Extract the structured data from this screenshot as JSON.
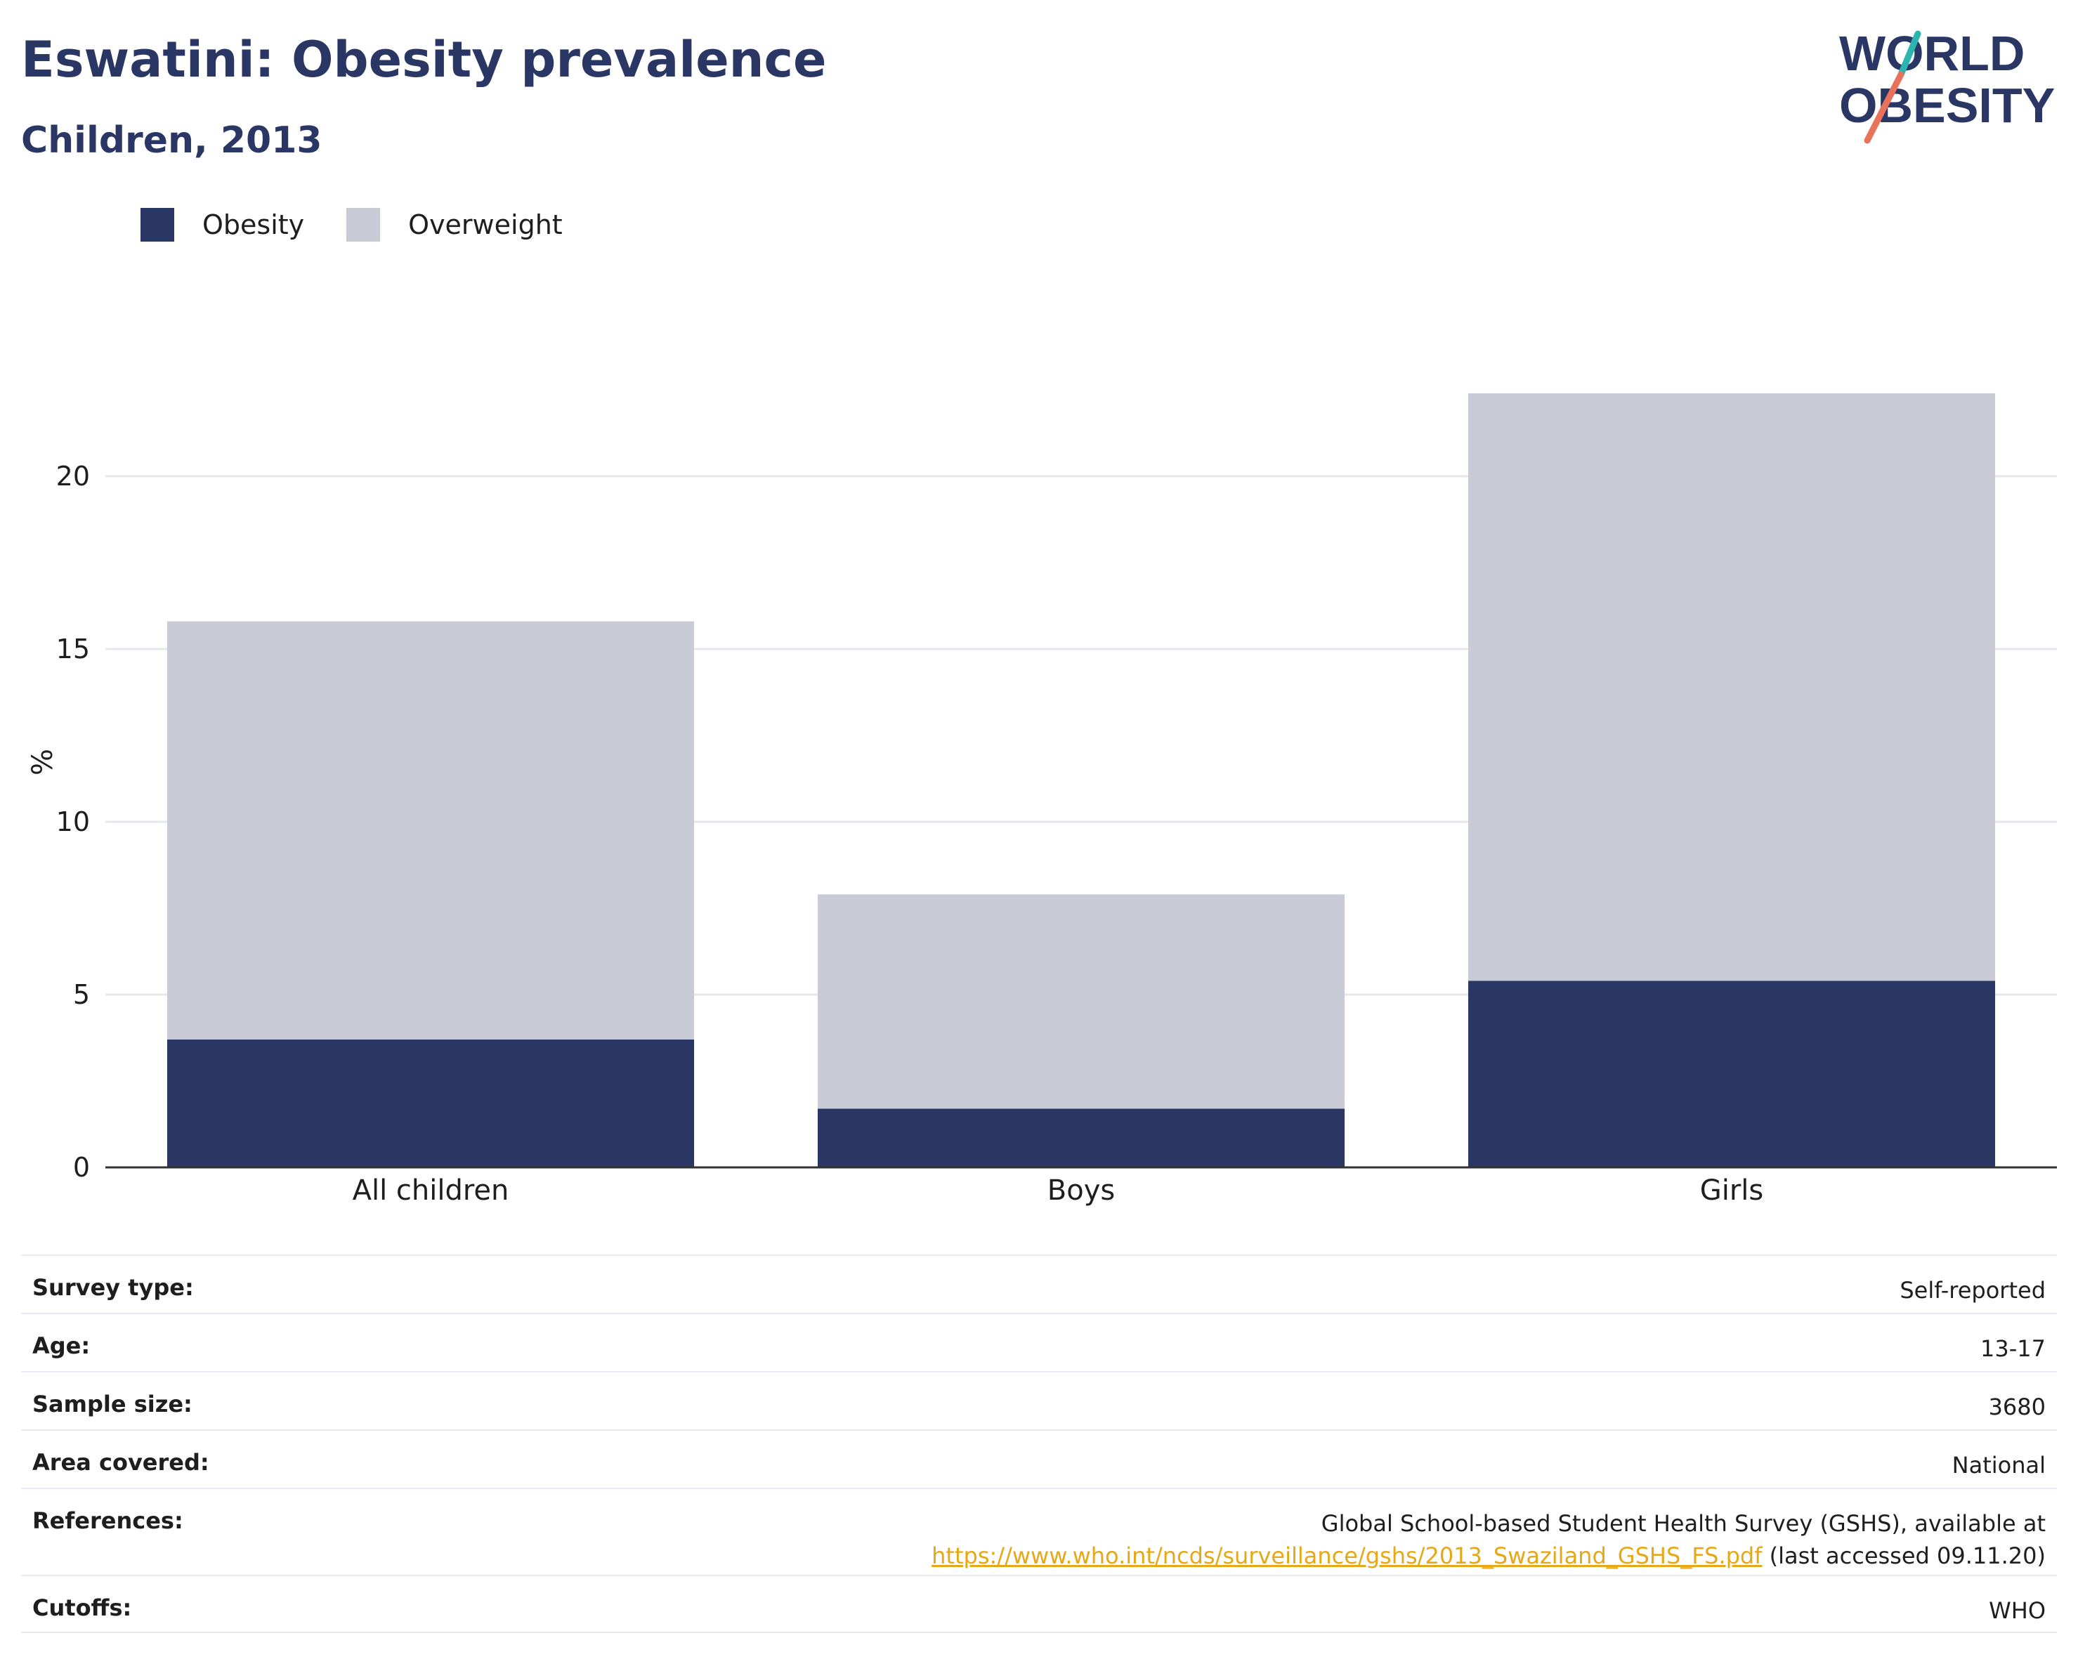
{
  "header": {
    "title": "Eswatini: Obesity prevalence",
    "subtitle": "Children, 2013"
  },
  "logo": {
    "line1": "WORLD",
    "line2": "OBESITY"
  },
  "legend": [
    {
      "label": "Obesity",
      "color": "#2a3664"
    },
    {
      "label": "Overweight",
      "color": "#c9cbd7"
    }
  ],
  "chart_data": {
    "type": "bar",
    "stacked": true,
    "categories": [
      "All children",
      "Boys",
      "Girls"
    ],
    "series": [
      {
        "name": "Obesity",
        "values": [
          3.7,
          1.7,
          5.4
        ],
        "color": "#2a3664"
      },
      {
        "name": "Overweight",
        "values": [
          12.1,
          6.2,
          17.0
        ],
        "color": "#c9cbd7"
      }
    ],
    "ylabel": "%",
    "yticks": [
      0,
      5,
      10,
      15,
      20
    ],
    "ylim": [
      0,
      23
    ],
    "grid": true,
    "legend_position": "top-left"
  },
  "info": {
    "survey_type": {
      "label": "Survey type:",
      "value": "Self-reported"
    },
    "age": {
      "label": "Age:",
      "value": "13-17"
    },
    "sample_size": {
      "label": "Sample size:",
      "value": "3680"
    },
    "area": {
      "label": "Area covered:",
      "value": "National"
    },
    "references": {
      "label": "References:",
      "text": "Global School-based Student Health Survey (GSHS), available at",
      "link": "https://www.who.int/ncds/surveillance/gshs/2013_Swaziland_GSHS_FS.pdf",
      "suffix": " (last accessed 09.11.20)"
    },
    "cutoffs": {
      "label": "Cutoffs:",
      "value": "WHO"
    }
  }
}
